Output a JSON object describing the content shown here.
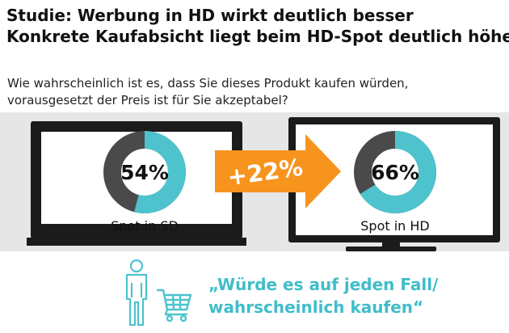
{
  "title": {
    "line1": "Studie: Werbung in HD wirkt deutlich besser",
    "line2": "Konkrete Kaufabsicht liegt beim HD-Spot deutlich höher"
  },
  "question": {
    "line1": "Wie wahrscheinlich ist es, dass Sie dieses Produkt kaufen würden,",
    "line2": "vorausgesetzt der Preis ist für Sie akzeptabel?"
  },
  "colors": {
    "accent": "#4ec3ce",
    "rest": "#4a4a4a",
    "arrow": "#f7941d",
    "tv": "#1b1b1b",
    "stage": "#e6e6e6"
  },
  "chart_data": {
    "type": "pie",
    "series": [
      {
        "name": "Spot in SD",
        "value": 54,
        "value_label": "54%"
      },
      {
        "name": "Spot in HD",
        "value": 66,
        "value_label": "66%"
      }
    ],
    "annotation": "+22%"
  },
  "footer": {
    "quote_line1": "„Würde es auf jeden Fall/",
    "quote_line2": "wahrscheinlich kaufen“",
    "icons": [
      "person-icon",
      "shopping-cart-icon"
    ]
  }
}
